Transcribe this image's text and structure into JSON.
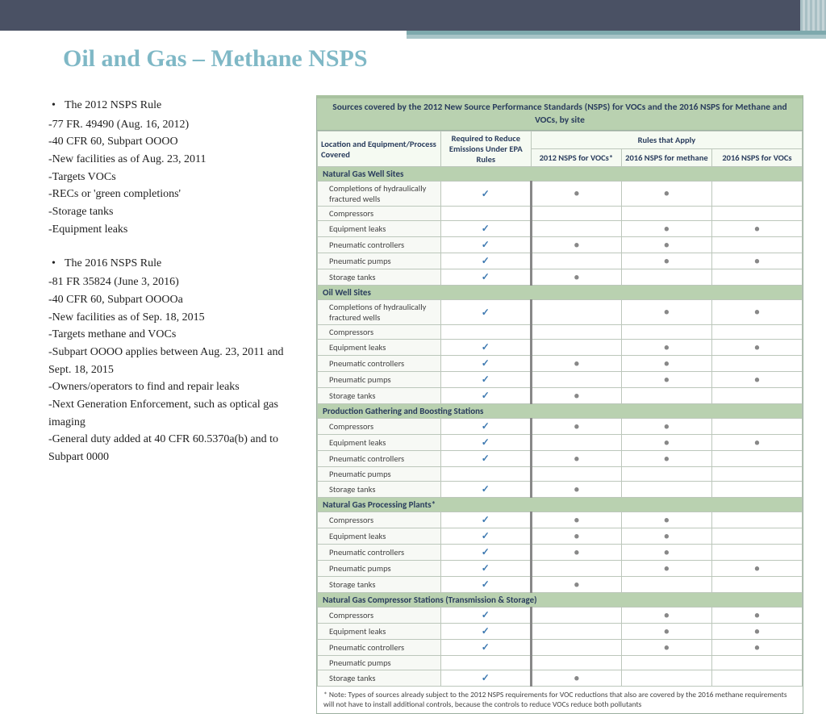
{
  "title": "Oil and Gas – Methane NSPS",
  "left": {
    "s1_head": "The 2012 NSPS Rule",
    "s1_lines": [
      "-77 FR. 49490 (Aug. 16, 2012)",
      "-40 CFR 60, Subpart OOOO",
      "-New facilities as of Aug. 23, 2011",
      "-Targets VOCs",
      "-RECs or 'green completions'",
      "-Storage tanks",
      "-Equipment leaks"
    ],
    "s2_head": "The 2016 NSPS Rule",
    "s2_lines": [
      "-81 FR 35824 (June 3, 2016)",
      "-40 CFR 60, Subpart OOOOa",
      "-New facilities as of Sep. 18, 2015",
      "-Targets methane and VOCs",
      "-Subpart OOOO applies between Aug. 23, 2011 and Sept. 18, 2015",
      "-Owners/operators to find and repair leaks",
      "-Next Generation Enforcement, such as optical gas imaging",
      "-General duty added at 40 CFR 60.5370a(b) and to Subpart 0000"
    ]
  },
  "table": {
    "title": "Sources covered by the 2012 New Source Performance Standards (NSPS) for VOCs and the 2016 NSPS for Methane and VOCs, by site",
    "headers": {
      "loc": "Location and Equipment/Process Covered",
      "req": "Required to Reduce Emissions Under EPA Rules",
      "rules": "Rules that Apply",
      "r1": "2012 NSPS for VOCs*",
      "r2": "2016 NSPS for methane",
      "r3": "2016 NSPS for VOCs"
    },
    "sections": [
      {
        "title": "Natural Gas Well Sites",
        "rows": [
          {
            "label": "Completions of hydraulically fractured wells",
            "req": "✓",
            "r1": "•",
            "r2": "•",
            "r3": ""
          },
          {
            "label": "Compressors",
            "req": "",
            "r1": "",
            "r2": "",
            "r3": ""
          },
          {
            "label": "Equipment leaks",
            "req": "✓",
            "r1": "",
            "r2": "•",
            "r3": "•"
          },
          {
            "label": "Pneumatic controllers",
            "req": "✓",
            "r1": "•",
            "r2": "•",
            "r3": ""
          },
          {
            "label": "Pneumatic pumps",
            "req": "✓",
            "r1": "",
            "r2": "•",
            "r3": "•"
          },
          {
            "label": "Storage tanks",
            "req": "✓",
            "r1": "•",
            "r2": "",
            "r3": ""
          }
        ]
      },
      {
        "title": "Oil Well Sites",
        "rows": [
          {
            "label": "Completions of hydraulically fractured wells",
            "req": "✓",
            "r1": "",
            "r2": "•",
            "r3": "•"
          },
          {
            "label": "Compressors",
            "req": "",
            "r1": "",
            "r2": "",
            "r3": ""
          },
          {
            "label": "Equipment leaks",
            "req": "✓",
            "r1": "",
            "r2": "•",
            "r3": "•"
          },
          {
            "label": "Pneumatic controllers",
            "req": "✓",
            "r1": "•",
            "r2": "•",
            "r3": ""
          },
          {
            "label": "Pneumatic pumps",
            "req": "✓",
            "r1": "",
            "r2": "•",
            "r3": "•"
          },
          {
            "label": "Storage tanks",
            "req": "✓",
            "r1": "•",
            "r2": "",
            "r3": ""
          }
        ]
      },
      {
        "title": "Production Gathering and Boosting Stations",
        "rows": [
          {
            "label": "Compressors",
            "req": "✓",
            "r1": "•",
            "r2": "•",
            "r3": ""
          },
          {
            "label": "Equipment leaks",
            "req": "✓",
            "r1": "",
            "r2": "•",
            "r3": "•"
          },
          {
            "label": "Pneumatic controllers",
            "req": "✓",
            "r1": "•",
            "r2": "•",
            "r3": ""
          },
          {
            "label": "Pneumatic pumps",
            "req": "",
            "r1": "",
            "r2": "",
            "r3": ""
          },
          {
            "label": "Storage tanks",
            "req": "✓",
            "r1": "•",
            "r2": "",
            "r3": ""
          }
        ]
      },
      {
        "title": "Natural Gas Processing Plants*",
        "rows": [
          {
            "label": "Compressors",
            "req": "✓",
            "r1": "•",
            "r2": "•",
            "r3": ""
          },
          {
            "label": "Equipment leaks",
            "req": "✓",
            "r1": "•",
            "r2": "•",
            "r3": ""
          },
          {
            "label": "Pneumatic controllers",
            "req": "✓",
            "r1": "•",
            "r2": "•",
            "r3": ""
          },
          {
            "label": "Pneumatic pumps",
            "req": "✓",
            "r1": "",
            "r2": "•",
            "r3": "•"
          },
          {
            "label": "Storage tanks",
            "req": "✓",
            "r1": "•",
            "r2": "",
            "r3": ""
          }
        ]
      },
      {
        "title": "Natural Gas Compressor Stations (Transmission & Storage)",
        "rows": [
          {
            "label": "Compressors",
            "req": "✓",
            "r1": "",
            "r2": "•",
            "r3": "•"
          },
          {
            "label": "Equipment leaks",
            "req": "✓",
            "r1": "",
            "r2": "•",
            "r3": "•"
          },
          {
            "label": "Pneumatic controllers",
            "req": "✓",
            "r1": "",
            "r2": "•",
            "r3": "•"
          },
          {
            "label": "Pneumatic pumps",
            "req": "",
            "r1": "",
            "r2": "",
            "r3": ""
          },
          {
            "label": "Storage tanks",
            "req": "✓",
            "r1": "•",
            "r2": "",
            "r3": ""
          }
        ]
      }
    ],
    "footnote": "*  Note: Types of sources already subject to the 2012 NSPS requirements for VOC reductions that also are covered by the 2016 methane requirements will not have to install additional controls, because the controls to reduce VOCs reduce both pollutants"
  }
}
